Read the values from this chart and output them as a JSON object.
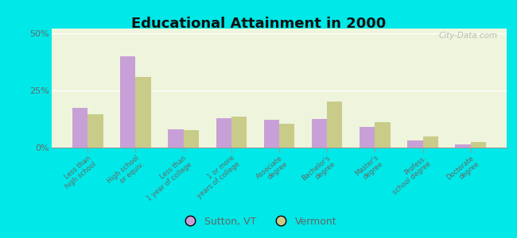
{
  "title": "Educational Attainment in 2000",
  "categories": [
    "Less than\nhigh school",
    "High school\nor equiv.",
    "Less than\n1 year of college",
    "1 or more\nyears of college",
    "Associate\ndegree",
    "Bachelor's\ndegree",
    "Master's\ndegree",
    "Profess.\nschool degree",
    "Doctorate\ndegree"
  ],
  "sutton_values": [
    17.5,
    40.0,
    8.0,
    13.0,
    12.0,
    12.5,
    9.0,
    3.0,
    1.5
  ],
  "vermont_values": [
    14.5,
    31.0,
    7.5,
    13.5,
    10.5,
    20.0,
    11.0,
    5.0,
    2.5
  ],
  "sutton_color": "#c8a0d8",
  "vermont_color": "#c8cc88",
  "background_outer": "#00e8e8",
  "background_inner": "#eef5dc",
  "grid_color": "#ffffff",
  "axis_color": "#999999",
  "label_color": "#666666",
  "title_color": "#111111",
  "yticks": [
    0,
    25,
    50
  ],
  "ylim": [
    0,
    52
  ],
  "bar_width": 0.32,
  "legend_labels": [
    "Sutton, VT",
    "Vermont"
  ],
  "watermark": "City-Data.com"
}
